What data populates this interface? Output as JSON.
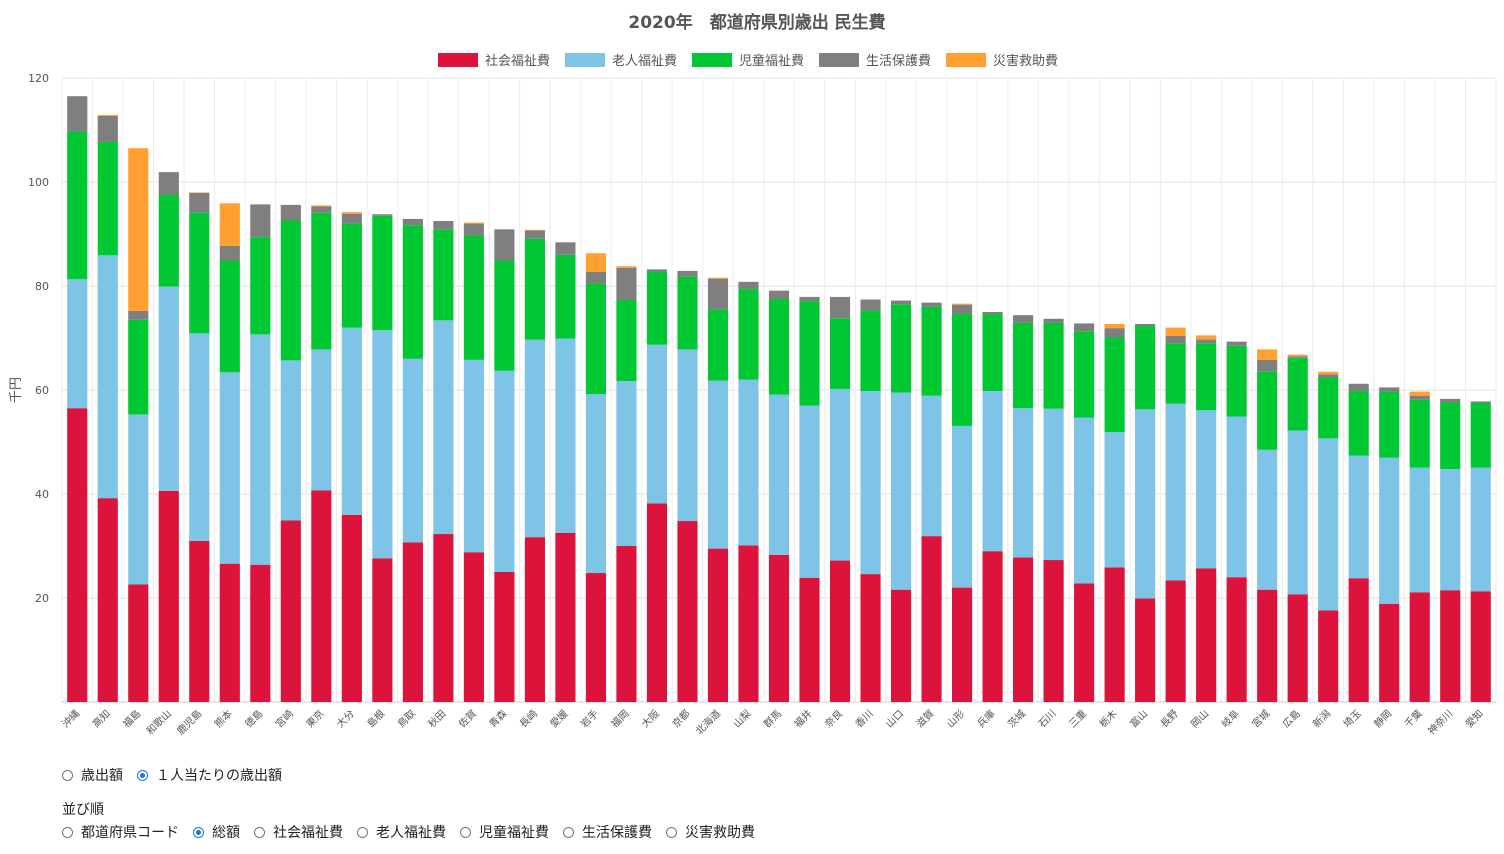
{
  "chart_data": {
    "type": "bar",
    "stacked": true,
    "title": "2020年　都道府県別歳出 民生費",
    "ylabel": "千円",
    "ylim": [
      0,
      120
    ],
    "yticks": [
      20,
      40,
      60,
      80,
      100,
      120
    ],
    "grid": true,
    "legend_position": "top",
    "categories": [
      "沖縄",
      "高知",
      "福島",
      "和歌山",
      "鹿児島",
      "熊本",
      "徳島",
      "宮崎",
      "東京",
      "大分",
      "島根",
      "鳥取",
      "秋田",
      "佐賀",
      "青森",
      "長崎",
      "愛媛",
      "岩手",
      "福岡",
      "大阪",
      "京都",
      "北海道",
      "山梨",
      "群馬",
      "福井",
      "奈良",
      "香川",
      "山口",
      "滋賀",
      "山形",
      "兵庫",
      "茨城",
      "石川",
      "三重",
      "栃木",
      "富山",
      "長野",
      "岡山",
      "岐阜",
      "宮城",
      "広島",
      "新潟",
      "埼玉",
      "静岡",
      "千葉",
      "神奈川",
      "愛知"
    ],
    "series": [
      {
        "name": "社会福祉費",
        "color": "#dc143c",
        "values": [
          56.5,
          39.2,
          22.6,
          40.6,
          31.0,
          26.6,
          26.4,
          34.9,
          40.7,
          36.0,
          27.6,
          30.7,
          32.3,
          28.8,
          25.0,
          31.7,
          32.5,
          24.8,
          30.0,
          38.2,
          34.8,
          29.5,
          30.1,
          28.3,
          23.9,
          27.2,
          24.6,
          21.6,
          31.9,
          22.0,
          29.0,
          27.8,
          27.3,
          22.8,
          25.9,
          19.9,
          23.4,
          25.7,
          24.0,
          21.6,
          20.7,
          17.6,
          23.8,
          18.9,
          21.1,
          21.5,
          21.3
        ]
      },
      {
        "name": "老人福祉費",
        "color": "#7ec4e6",
        "values": [
          24.8,
          46.7,
          32.7,
          39.3,
          39.9,
          36.8,
          44.3,
          30.8,
          27.1,
          36.0,
          43.9,
          35.3,
          41.1,
          37.0,
          38.7,
          38.0,
          37.4,
          34.4,
          31.7,
          30.5,
          33.0,
          32.3,
          31.9,
          30.8,
          33.1,
          33.0,
          35.2,
          37.9,
          27.0,
          31.1,
          30.8,
          28.7,
          29.1,
          31.9,
          26.0,
          36.4,
          34.0,
          30.4,
          30.9,
          26.9,
          31.5,
          33.1,
          23.6,
          28.1,
          24.0,
          23.3,
          23.8
        ]
      },
      {
        "name": "児童福祉費",
        "color": "#00c832",
        "values": [
          28.4,
          21.8,
          18.2,
          17.6,
          23.2,
          21.5,
          18.7,
          26.9,
          26.3,
          20.0,
          22.0,
          25.7,
          17.5,
          23.9,
          21.2,
          19.4,
          16.1,
          21.3,
          15.6,
          14.1,
          14.0,
          13.7,
          17.4,
          18.4,
          20.1,
          13.6,
          15.5,
          17.0,
          17.1,
          21.5,
          14.8,
          16.4,
          16.5,
          16.6,
          18.2,
          16.0,
          11.6,
          12.9,
          13.6,
          15.1,
          14.0,
          11.7,
          12.4,
          12.7,
          13.0,
          12.8,
          12.4
        ]
      },
      {
        "name": "生活保護費",
        "color": "#7f7f7f",
        "values": [
          6.8,
          5.0,
          1.7,
          4.4,
          3.8,
          2.8,
          6.3,
          3.0,
          1.2,
          1.9,
          0.3,
          1.2,
          1.6,
          2.3,
          6.0,
          1.6,
          2.4,
          2.2,
          6.2,
          0.4,
          1.1,
          5.9,
          1.4,
          1.6,
          0.8,
          4.1,
          2.1,
          0.7,
          0.8,
          1.8,
          0.4,
          1.5,
          0.8,
          1.5,
          1.8,
          0.4,
          1.4,
          0.7,
          0.8,
          2.2,
          0.3,
          0.6,
          1.4,
          0.8,
          0.8,
          0.7,
          0.3
        ]
      },
      {
        "name": "災害救助費",
        "color": "#ffa030",
        "values": [
          0.0,
          0.2,
          31.3,
          0.0,
          0.1,
          8.2,
          0.0,
          0.0,
          0.2,
          0.3,
          0.0,
          0.0,
          0.0,
          0.2,
          0.0,
          0.1,
          0.0,
          3.6,
          0.3,
          0.0,
          0.0,
          0.2,
          0.0,
          0.0,
          0.0,
          0.0,
          0.0,
          0.0,
          0.0,
          0.2,
          0.0,
          0.0,
          0.0,
          0.0,
          0.8,
          0.0,
          1.6,
          0.8,
          0.0,
          2.0,
          0.3,
          0.5,
          0.0,
          0.0,
          0.8,
          0.0,
          0.0
        ]
      }
    ]
  },
  "controls": {
    "mode_options": [
      {
        "label": "歳出額",
        "checked": false
      },
      {
        "label": "１人当たりの歳出額",
        "checked": true
      }
    ],
    "sort_title": "並び順",
    "sort_options": [
      {
        "label": "都道府県コード",
        "checked": false
      },
      {
        "label": "総額",
        "checked": true
      },
      {
        "label": "社会福祉費",
        "checked": false
      },
      {
        "label": "老人福祉費",
        "checked": false
      },
      {
        "label": "児童福祉費",
        "checked": false
      },
      {
        "label": "生活保護費",
        "checked": false
      },
      {
        "label": "災害救助費",
        "checked": false
      }
    ]
  }
}
